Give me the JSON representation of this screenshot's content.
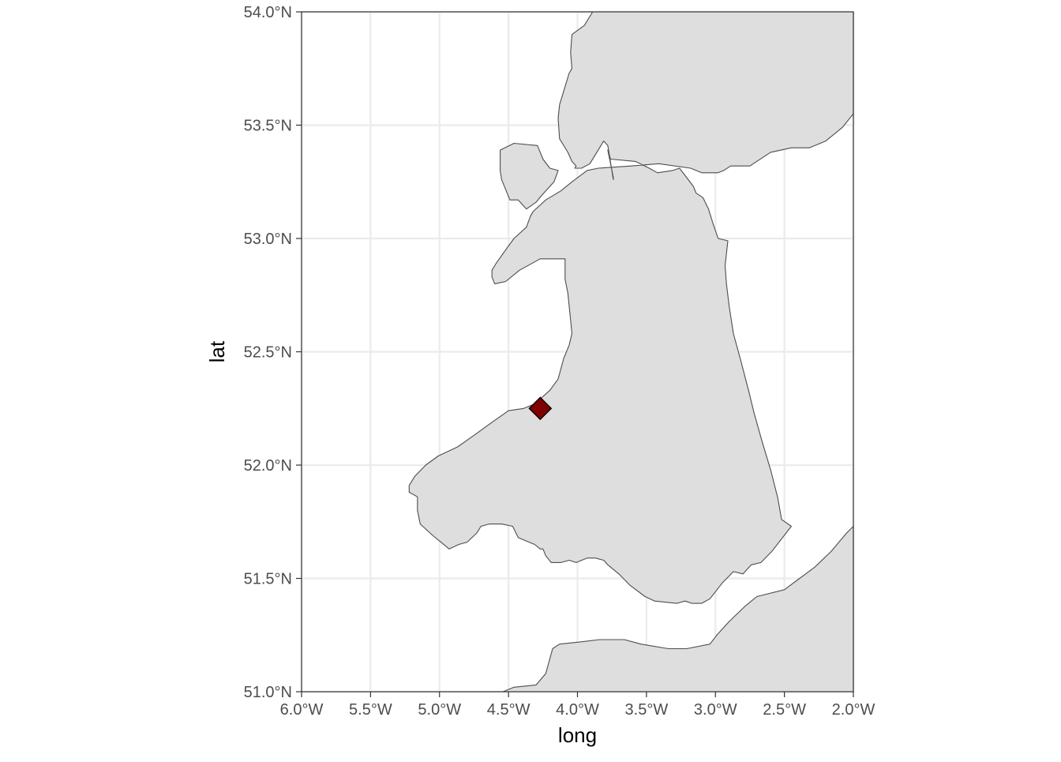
{
  "map": {
    "xlabel": "long",
    "ylabel": "lat",
    "xlim": [
      -6.0,
      -2.0
    ],
    "ylim": [
      51.0,
      54.0
    ],
    "x_ticks": [
      {
        "value": -6.0,
        "label": "6.0°W"
      },
      {
        "value": -5.5,
        "label": "5.5°W"
      },
      {
        "value": -5.0,
        "label": "5.0°W"
      },
      {
        "value": -4.5,
        "label": "4.5°W"
      },
      {
        "value": -4.0,
        "label": "4.0°W"
      },
      {
        "value": -3.5,
        "label": "3.5°W"
      },
      {
        "value": -3.0,
        "label": "3.0°W"
      },
      {
        "value": -2.5,
        "label": "2.5°W"
      },
      {
        "value": -2.0,
        "label": "2.0°W"
      }
    ],
    "y_ticks": [
      {
        "value": 51.0,
        "label": "51.0°N"
      },
      {
        "value": 51.5,
        "label": "51.5°N"
      },
      {
        "value": 52.0,
        "label": "52.0°N"
      },
      {
        "value": 52.5,
        "label": "52.5°N"
      },
      {
        "value": 53.0,
        "label": "53.0°N"
      },
      {
        "value": 53.5,
        "label": "53.5°N"
      },
      {
        "value": 54.0,
        "label": "54.0°N"
      }
    ],
    "grid": true,
    "colors": {
      "land_fill": "#dedede",
      "land_stroke": "#4d4d4d",
      "grid": "#ebebeb",
      "marker_fill": "#800000",
      "marker_stroke": "#000000"
    },
    "marker": {
      "shape": "diamond",
      "lon": -4.27,
      "lat": 52.25
    },
    "land": [
      {
        "name": "mainland",
        "coords": [
          [
            -3.89,
            54.0
          ],
          [
            -3.95,
            53.94
          ],
          [
            -4.04,
            53.9
          ],
          [
            -4.05,
            53.82
          ],
          [
            -4.04,
            53.75
          ],
          [
            -4.06,
            53.73
          ],
          [
            -4.09,
            53.67
          ],
          [
            -4.13,
            53.59
          ],
          [
            -4.14,
            53.53
          ],
          [
            -4.13,
            53.44
          ],
          [
            -4.07,
            53.38
          ],
          [
            -4.04,
            53.34
          ],
          [
            -4.01,
            53.32
          ],
          [
            -4.02,
            53.31
          ],
          [
            -3.97,
            53.31
          ],
          [
            -3.91,
            53.33
          ],
          [
            -3.81,
            53.43
          ],
          [
            -3.78,
            53.41
          ],
          [
            -3.74,
            53.26
          ],
          [
            -3.74,
            53.27
          ],
          [
            -3.78,
            53.39
          ],
          [
            -3.76,
            53.35
          ],
          [
            -3.58,
            53.34
          ],
          [
            -3.48,
            53.31
          ],
          [
            -3.42,
            53.29
          ],
          [
            -3.31,
            53.3
          ],
          [
            -3.26,
            53.31
          ],
          [
            -3.16,
            53.23
          ],
          [
            -3.14,
            53.2
          ],
          [
            -3.09,
            53.18
          ],
          [
            -3.05,
            53.13
          ],
          [
            -3.02,
            53.07
          ],
          [
            -2.98,
            53.0
          ],
          [
            -2.91,
            52.99
          ],
          [
            -2.93,
            52.88
          ],
          [
            -2.92,
            52.8
          ],
          [
            -2.9,
            52.7
          ],
          [
            -2.87,
            52.58
          ],
          [
            -2.82,
            52.47
          ],
          [
            -2.76,
            52.33
          ],
          [
            -2.72,
            52.23
          ],
          [
            -2.66,
            52.1
          ],
          [
            -2.6,
            51.98
          ],
          [
            -2.55,
            51.86
          ],
          [
            -2.52,
            51.76
          ],
          [
            -2.45,
            51.73
          ],
          [
            -2.59,
            51.62
          ],
          [
            -2.67,
            51.57
          ],
          [
            -2.74,
            51.56
          ],
          [
            -2.8,
            51.52
          ],
          [
            -2.87,
            51.53
          ],
          [
            -2.95,
            51.48
          ],
          [
            -3.04,
            51.41
          ],
          [
            -3.1,
            51.39
          ],
          [
            -3.17,
            51.39
          ],
          [
            -3.22,
            51.4
          ],
          [
            -3.28,
            51.39
          ],
          [
            -3.44,
            51.4
          ],
          [
            -3.51,
            51.42
          ],
          [
            -3.62,
            51.47
          ],
          [
            -3.7,
            51.52
          ],
          [
            -3.78,
            51.56
          ],
          [
            -3.81,
            51.58
          ],
          [
            -3.87,
            51.59
          ],
          [
            -3.93,
            51.59
          ],
          [
            -4.01,
            51.57
          ],
          [
            -4.06,
            51.58
          ],
          [
            -4.12,
            51.57
          ],
          [
            -4.19,
            51.57
          ],
          [
            -4.23,
            51.6
          ],
          [
            -4.25,
            51.63
          ],
          [
            -4.27,
            51.63
          ],
          [
            -4.31,
            51.65
          ],
          [
            -4.35,
            51.66
          ],
          [
            -4.39,
            51.67
          ],
          [
            -4.43,
            51.68
          ],
          [
            -4.47,
            51.73
          ],
          [
            -4.55,
            51.74
          ],
          [
            -4.64,
            51.74
          ],
          [
            -4.7,
            51.73
          ],
          [
            -4.73,
            51.7
          ],
          [
            -4.8,
            51.66
          ],
          [
            -4.86,
            51.65
          ],
          [
            -4.93,
            51.63
          ],
          [
            -4.99,
            51.66
          ],
          [
            -5.05,
            51.69
          ],
          [
            -5.14,
            51.74
          ],
          [
            -5.16,
            51.8
          ],
          [
            -5.16,
            51.86
          ],
          [
            -5.22,
            51.88
          ],
          [
            -5.22,
            51.91
          ],
          [
            -5.18,
            51.95
          ],
          [
            -5.1,
            52.0
          ],
          [
            -5.01,
            52.04
          ],
          [
            -4.87,
            52.08
          ],
          [
            -4.8,
            52.11
          ],
          [
            -4.73,
            52.14
          ],
          [
            -4.64,
            52.18
          ],
          [
            -4.5,
            52.24
          ],
          [
            -4.39,
            52.25
          ],
          [
            -4.31,
            52.27
          ],
          [
            -4.2,
            52.33
          ],
          [
            -4.14,
            52.38
          ],
          [
            -4.1,
            52.47
          ],
          [
            -4.06,
            52.53
          ],
          [
            -4.04,
            52.58
          ],
          [
            -4.05,
            52.64
          ],
          [
            -4.06,
            52.7
          ],
          [
            -4.07,
            52.76
          ],
          [
            -4.09,
            52.82
          ],
          [
            -4.09,
            52.91
          ],
          [
            -4.27,
            52.91
          ],
          [
            -4.42,
            52.86
          ],
          [
            -4.52,
            52.81
          ],
          [
            -4.6,
            52.8
          ],
          [
            -4.62,
            52.83
          ],
          [
            -4.62,
            52.86
          ],
          [
            -4.59,
            52.89
          ],
          [
            -4.52,
            52.95
          ],
          [
            -4.46,
            53.0
          ],
          [
            -4.37,
            53.05
          ],
          [
            -4.34,
            53.1
          ],
          [
            -4.32,
            53.12
          ],
          [
            -4.23,
            53.17
          ],
          [
            -4.12,
            53.21
          ],
          [
            -4.04,
            53.25
          ],
          [
            -3.93,
            53.3
          ],
          [
            -3.85,
            53.31
          ],
          [
            -3.61,
            53.32
          ],
          [
            -3.41,
            53.33
          ],
          [
            -3.18,
            53.31
          ],
          [
            -3.1,
            53.29
          ],
          [
            -2.98,
            53.29
          ],
          [
            -2.94,
            53.3
          ],
          [
            -2.89,
            53.32
          ],
          [
            -2.75,
            53.32
          ],
          [
            -2.6,
            53.38
          ],
          [
            -2.45,
            53.4
          ],
          [
            -2.32,
            53.4
          ],
          [
            -2.2,
            53.43
          ],
          [
            -2.08,
            53.49
          ],
          [
            -2.0,
            53.55
          ],
          [
            -2.0,
            54.0
          ]
        ]
      },
      {
        "name": "anglesey",
        "coords": [
          [
            -4.56,
            53.39
          ],
          [
            -4.46,
            53.42
          ],
          [
            -4.29,
            53.41
          ],
          [
            -4.25,
            53.35
          ],
          [
            -4.2,
            53.31
          ],
          [
            -4.14,
            53.3
          ],
          [
            -4.17,
            53.25
          ],
          [
            -4.26,
            53.19
          ],
          [
            -4.3,
            53.16
          ],
          [
            -4.37,
            53.13
          ],
          [
            -4.43,
            53.17
          ],
          [
            -4.49,
            53.17
          ],
          [
            -4.55,
            53.26
          ],
          [
            -4.56,
            53.3
          ]
        ]
      },
      {
        "name": "north-devon",
        "coords": [
          [
            -4.54,
            51.0
          ],
          [
            -4.46,
            51.02
          ],
          [
            -4.3,
            51.03
          ],
          [
            -4.23,
            51.08
          ],
          [
            -4.18,
            51.19
          ],
          [
            -4.13,
            51.21
          ],
          [
            -3.98,
            51.22
          ],
          [
            -3.84,
            51.23
          ],
          [
            -3.66,
            51.23
          ],
          [
            -3.54,
            51.21
          ],
          [
            -3.34,
            51.19
          ],
          [
            -3.21,
            51.19
          ],
          [
            -3.04,
            51.21
          ],
          [
            -2.99,
            51.25
          ],
          [
            -2.9,
            51.31
          ],
          [
            -2.78,
            51.38
          ],
          [
            -2.7,
            51.42
          ],
          [
            -2.5,
            51.45
          ],
          [
            -2.39,
            51.5
          ],
          [
            -2.28,
            51.55
          ],
          [
            -2.16,
            51.62
          ],
          [
            -2.05,
            51.7
          ],
          [
            -2.0,
            51.73
          ],
          [
            -2.0,
            51.0
          ]
        ]
      }
    ]
  }
}
